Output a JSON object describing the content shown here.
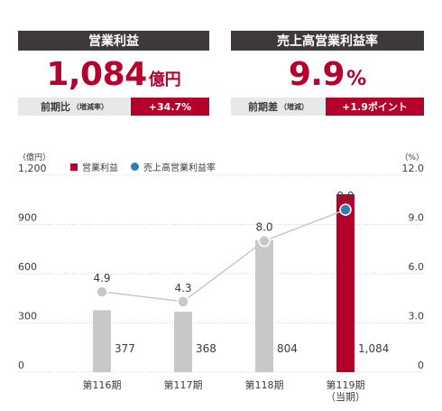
{
  "kpi": {
    "profit": {
      "header": "営業利益",
      "value": "1,084",
      "unit": "億円",
      "sub_label": "前期比",
      "sub_note": "（増減率）",
      "sub_value": "+34.7%"
    },
    "margin": {
      "header": "売上高営業利益率",
      "value": "9.9",
      "unit": "%",
      "sub_label": "前期差",
      "sub_note": "（増減）",
      "sub_value": "+1.9ポイント"
    }
  },
  "colors": {
    "bar_highlight": "#b5002b",
    "bar_normal": "#c8c8c8",
    "line": "#c8c8c8",
    "line_last_point": "#2e7fab",
    "header_bg": "#3e3a39"
  },
  "chart_data": {
    "type": "bar",
    "categories": [
      "第116期",
      "第117期",
      "第118期",
      "第119期\n（当期）"
    ],
    "series": [
      {
        "name": "営業利益",
        "type": "bar",
        "axis": "left",
        "values": [
          377,
          368,
          804,
          1084
        ],
        "labels": [
          "377",
          "368",
          "804",
          "1,084"
        ]
      },
      {
        "name": "売上高営業利益率",
        "type": "line",
        "axis": "right",
        "values": [
          4.9,
          4.3,
          8.0,
          9.9
        ],
        "labels": [
          "4.9",
          "4.3",
          "8.0",
          "9.9"
        ]
      }
    ],
    "left_axis": {
      "unit": "（億円）",
      "ticks": [
        "0",
        "300",
        "600",
        "900",
        "1,200"
      ],
      "range": [
        0,
        1200
      ]
    },
    "right_axis": {
      "unit": "（%）",
      "ticks": [
        "0",
        "3.0",
        "6.0",
        "9.0",
        "12.0"
      ],
      "range": [
        0,
        12
      ]
    },
    "grid": true,
    "legend": "top-left"
  }
}
